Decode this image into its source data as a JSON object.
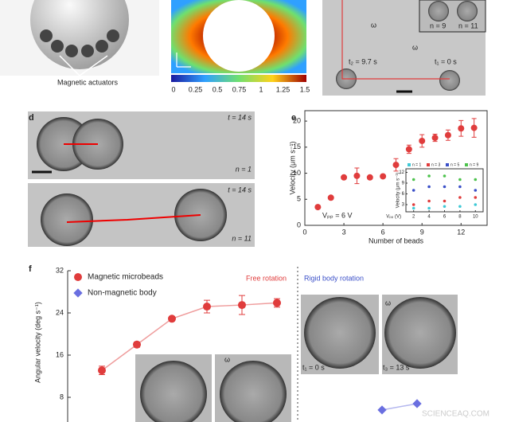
{
  "panel_a": {
    "caption": "Magnetic actuators"
  },
  "panel_b": {
    "colorbar_ticks": [
      "0",
      "0.25",
      "0.5",
      "0.75",
      "1",
      "1.25",
      "1.5"
    ]
  },
  "panel_c": {
    "texts": [
      "t₂ = 9.7 s",
      "t₁ = 0 s",
      "n = 9",
      "n = 11",
      "ω",
      "ω"
    ]
  },
  "panel_d": {
    "label": "d",
    "texts": [
      "t = 14 s",
      "n = 1",
      "t = 14 s",
      "n = 11"
    ]
  },
  "panel_f": {
    "label": "f",
    "texts": [
      "t₁ = 0 s",
      "t₃ = 13 s",
      "ω",
      "ω"
    ]
  },
  "chart_data": [
    {
      "type": "scatter",
      "panel": "e",
      "ylabel": "Velocity (μm s⁻¹)",
      "xlabel": "Number of beads",
      "annotation": "Vₚₚ = 6 V",
      "x": [
        1,
        2,
        3,
        4,
        5,
        6,
        7,
        8,
        9,
        10,
        11,
        12,
        13
      ],
      "values": [
        3.5,
        5.3,
        9.2,
        9.5,
        9.2,
        9.4,
        11.6,
        14.6,
        16.2,
        16.8,
        17.3,
        18.6,
        18.7
      ],
      "errors": [
        0.3,
        0.3,
        0.3,
        1.5,
        0.3,
        0.3,
        1.2,
        0.8,
        1.2,
        0.7,
        1.0,
        1.5,
        1.8
      ],
      "color": "#e03c3c",
      "xlim": [
        0,
        14
      ],
      "ylim": [
        0,
        22
      ],
      "xticks": [
        0,
        3,
        6,
        9,
        12
      ],
      "yticks": [
        0,
        5,
        10,
        15,
        20
      ],
      "inset": {
        "xlabel": "Vₚₚ (V)",
        "ylabel": "Velocity (μm s⁻¹)",
        "x": [
          2,
          4,
          6,
          8,
          10
        ],
        "xlim": [
          1,
          11
        ],
        "ylim": [
          1,
          13
        ],
        "xticks": [
          2,
          4,
          6,
          8,
          10
        ],
        "yticks": [
          3,
          6,
          9,
          12
        ],
        "series": [
          {
            "name": "n = 1",
            "color": "#3fc9d6",
            "values": [
              2,
              2,
              2.5,
              2.5,
              3
            ]
          },
          {
            "name": "n = 3",
            "color": "#e03c3c",
            "values": [
              3,
              4,
              4,
              5,
              5
            ]
          },
          {
            "name": "n = 5",
            "color": "#3a4fc8",
            "values": [
              7,
              8,
              8,
              8,
              7
            ]
          },
          {
            "name": "n = 9",
            "color": "#4cc24c",
            "values": [
              10,
              11,
              11,
              10,
              10
            ]
          }
        ]
      }
    },
    {
      "type": "line",
      "panel": "f",
      "ylabel": "Angular velocity (deg s⁻¹)",
      "annotations": [
        "Free rotation",
        "Rigid body rotation"
      ],
      "categories": [
        null,
        null,
        null,
        null,
        null,
        null,
        null,
        null,
        null,
        null
      ],
      "ylim": [
        0,
        32
      ],
      "yticks": [
        8,
        16,
        24,
        32
      ],
      "series": [
        {
          "name": "Magnetic microbeads",
          "color": "#e03c3c",
          "values": [
            13.1,
            18,
            22.9,
            25.2,
            25.5,
            25.9,
            null,
            null,
            null,
            null
          ],
          "errors": [
            0.8,
            0.5,
            0.4,
            1.2,
            1.8,
            0.8,
            null,
            null,
            null,
            null
          ]
        },
        {
          "name": "Non-magnetic body",
          "color": "#6a6fe0",
          "values": [
            null,
            null,
            null,
            null,
            null,
            null,
            null,
            null,
            5.6,
            6.8
          ],
          "errors": [
            null,
            null,
            null,
            null,
            null,
            null,
            null,
            null,
            null,
            null
          ]
        }
      ]
    }
  ]
}
